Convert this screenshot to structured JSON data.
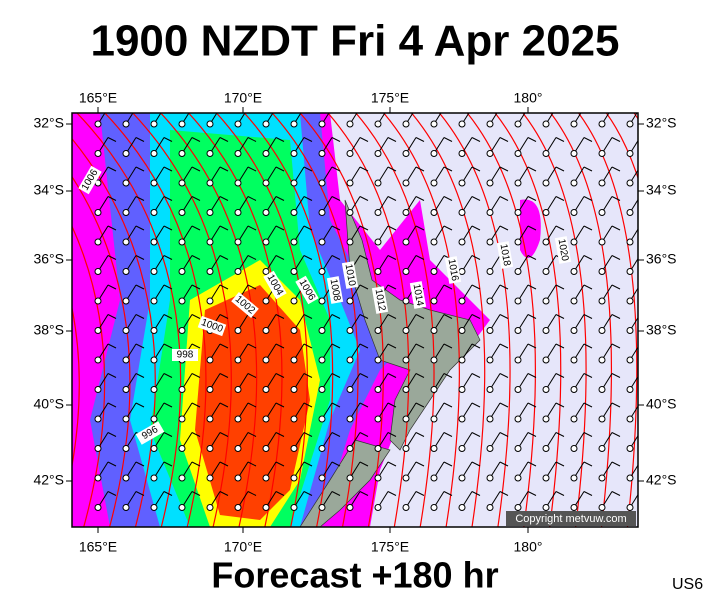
{
  "header": {
    "title": "1900 NZDT Fri 4 Apr 2025"
  },
  "map": {
    "lon_labels": [
      "165°E",
      "170°E",
      "175°E",
      "180°"
    ],
    "lat_labels": [
      "32°S",
      "34°S",
      "36°S",
      "38°S",
      "40°S",
      "42°S"
    ],
    "isobar_labels": [
      "1006",
      "1004",
      "1006",
      "1008",
      "1010",
      "1012",
      "1014",
      "1016",
      "1018",
      "1020",
      "1002",
      "1000",
      "998",
      "996"
    ],
    "copyright": "Copyright metvuw.com"
  },
  "footer": {
    "forecast": "Forecast +180 hr",
    "region": "US6"
  }
}
